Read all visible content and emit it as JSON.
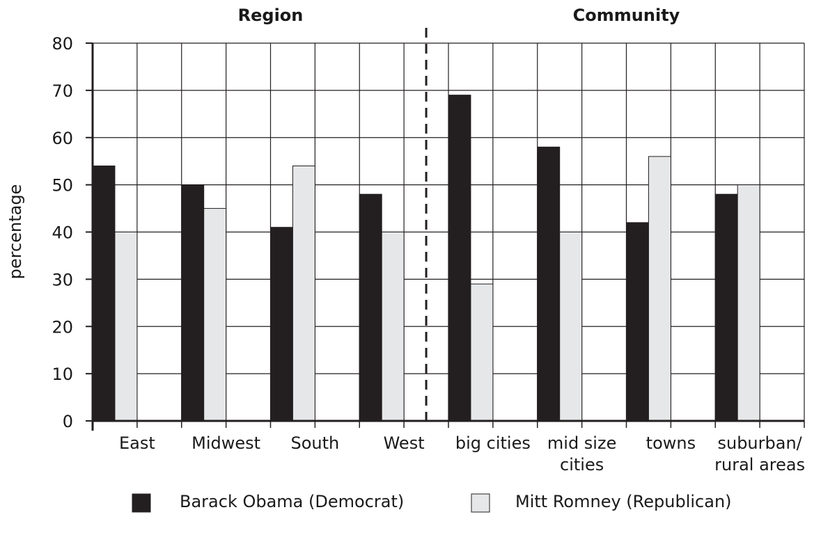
{
  "chart_data": {
    "type": "bar",
    "ylabel": "percentage",
    "ylim": [
      0,
      80
    ],
    "yticks": [
      0,
      10,
      20,
      30,
      40,
      50,
      60,
      70,
      80
    ],
    "grid": true,
    "legend_position": "bottom",
    "groups": [
      {
        "title": "Region",
        "start": 0,
        "end": 3
      },
      {
        "title": "Community",
        "start": 4,
        "end": 7
      }
    ],
    "categories": [
      [
        "East"
      ],
      [
        "Midwest"
      ],
      [
        "South"
      ],
      [
        "West"
      ],
      [
        "big cities"
      ],
      [
        "mid size",
        "cities"
      ],
      [
        "towns"
      ],
      [
        "suburban/",
        "rural areas"
      ]
    ],
    "series": [
      {
        "name": "Barack Obama (Democrat)",
        "color": "#231f20",
        "values": [
          54,
          50,
          41,
          48,
          69,
          58,
          42,
          48
        ]
      },
      {
        "name": "Mitt Romney (Republican)",
        "color": "#e6e7e8",
        "values": [
          40,
          45,
          54,
          40,
          29,
          40,
          56,
          50
        ]
      }
    ]
  }
}
